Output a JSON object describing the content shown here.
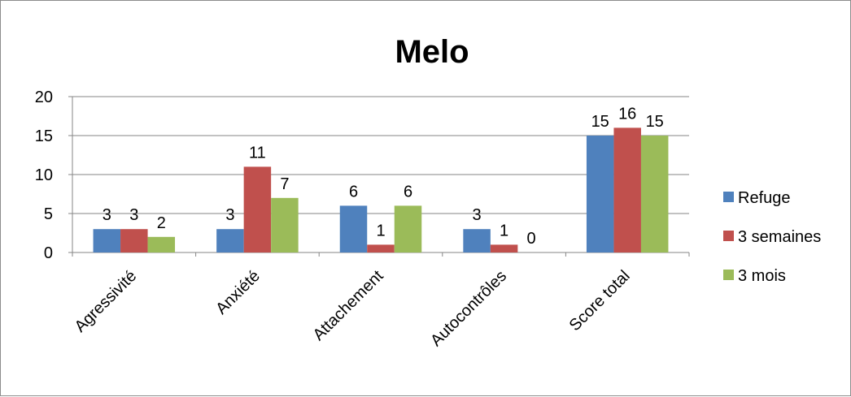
{
  "chart_data": {
    "type": "bar",
    "title": "Melo",
    "categories": [
      "Agressivité",
      "Anxiété",
      "Attachement",
      "Autocontrôles",
      "Score total"
    ],
    "series": [
      {
        "name": "Refuge",
        "color": "#4f81bd",
        "values": [
          3,
          3,
          6,
          3,
          15
        ]
      },
      {
        "name": "3 semaines",
        "color": "#c0504d",
        "values": [
          3,
          11,
          1,
          1,
          16
        ]
      },
      {
        "name": "3 mois",
        "color": "#9bbb59",
        "values": [
          2,
          7,
          6,
          0,
          15
        ]
      }
    ],
    "ylim": [
      0,
      20
    ],
    "yticks": [
      0,
      5,
      10,
      15,
      20
    ],
    "grid": true,
    "legend_position": "right",
    "data_labels": true
  }
}
